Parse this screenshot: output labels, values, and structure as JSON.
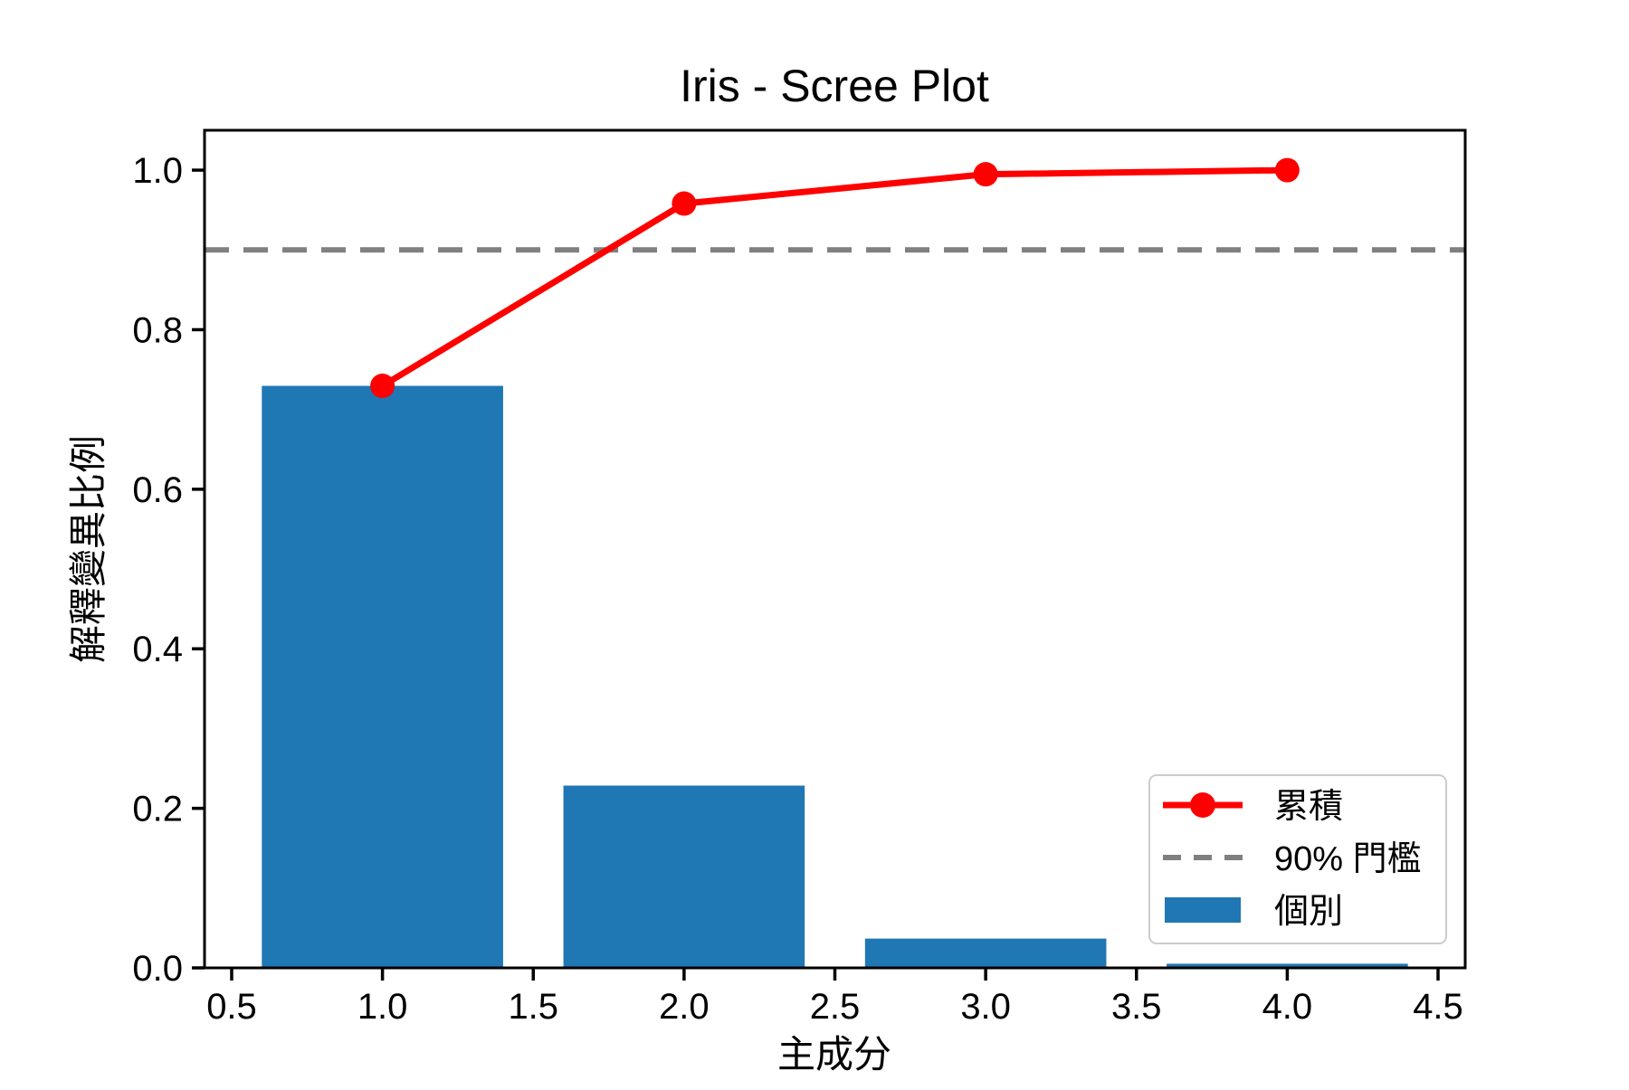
{
  "chart_data": {
    "type": "bar",
    "subtype": "scree-plot-with-cumulative-line",
    "title": "Iris - Scree Plot",
    "xlabel": "主成分",
    "ylabel": "解釋變異比例",
    "categories": [
      1,
      2,
      3,
      4
    ],
    "series": [
      {
        "name": "個別",
        "type": "bar",
        "color": "#1f77b4",
        "values": [
          0.7296,
          0.2285,
          0.0367,
          0.0052
        ]
      },
      {
        "name": "累積",
        "type": "line",
        "marker": "circle",
        "color": "#ff0000",
        "values": [
          0.7296,
          0.9581,
          0.9948,
          1.0
        ]
      },
      {
        "name": "90% 門檻",
        "type": "hline",
        "linestyle": "dashed",
        "color": "#808080",
        "value": 0.9
      }
    ],
    "xlim": [
      0.41,
      4.59
    ],
    "ylim": [
      0.0,
      1.05
    ],
    "xticks": [
      "0.5",
      "1.0",
      "1.5",
      "2.0",
      "2.5",
      "3.0",
      "3.5",
      "4.0",
      "4.5"
    ],
    "yticks": [
      "0.0",
      "0.2",
      "0.4",
      "0.6",
      "0.8",
      "1.0"
    ],
    "bar_width": 0.8,
    "grid": false,
    "legend": {
      "position": "lower right",
      "entries": [
        {
          "label": "累積",
          "swatch": "line-marker",
          "color": "#ff0000"
        },
        {
          "label": "90% 門檻",
          "swatch": "dashed-line",
          "color": "#808080"
        },
        {
          "label": "個別",
          "swatch": "rect",
          "color": "#1f77b4"
        }
      ]
    },
    "colors": {
      "bar": "#1f77b4",
      "cumulative_line": "#ff0000",
      "threshold_line": "#808080",
      "spine": "#000000",
      "legend_border": "#cccccc",
      "background": "#ffffff"
    }
  }
}
